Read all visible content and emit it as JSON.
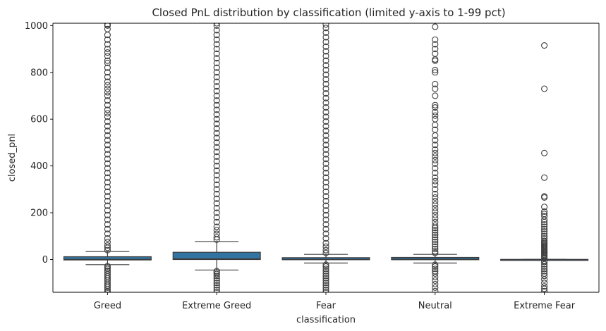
{
  "chart_data": {
    "type": "box",
    "title": "Closed PnL distribution by classification (limited y-axis to 1-99 pct)",
    "xlabel": "classification",
    "ylabel": "closed_pnl",
    "ylim": [
      -140,
      1010
    ],
    "yticks": [
      0,
      200,
      400,
      600,
      800,
      1000
    ],
    "grid": false,
    "colors": {
      "box": "#3274a1",
      "edge": "#3d3d3d",
      "outlier": "#3d3d3d"
    },
    "categories": [
      "Greed",
      "Extreme Greed",
      "Fear",
      "Neutral",
      "Extreme Fear"
    ],
    "boxes": [
      {
        "name": "Greed",
        "whisker_low": -22,
        "q1": -2,
        "median": 1,
        "q3": 12,
        "whisker_high": 34,
        "outliers": [
          -140,
          -135,
          -128,
          -120,
          -112,
          -104,
          -96,
          -88,
          -80,
          -72,
          -64,
          -56,
          -48,
          -40,
          -34,
          -28,
          40,
          50,
          60,
          75,
          90,
          110,
          130,
          150,
          170,
          190,
          210,
          230,
          250,
          270,
          290,
          310,
          330,
          350,
          370,
          390,
          410,
          430,
          450,
          470,
          490,
          510,
          530,
          550,
          570,
          590,
          610,
          625,
          640,
          660,
          680,
          700,
          715,
          730,
          745,
          760,
          780,
          800,
          820,
          840,
          850,
          870,
          885,
          900,
          920,
          940,
          960,
          985,
          1000,
          1005
        ]
      },
      {
        "name": "Extreme Greed",
        "whisker_low": -45,
        "q1": 0,
        "median": 3,
        "q3": 31,
        "whisker_high": 77,
        "outliers": [
          -140,
          -130,
          -120,
          -110,
          -100,
          -90,
          -80,
          -70,
          -62,
          -55,
          -50,
          85,
          95,
          110,
          125,
          140,
          160,
          180,
          200,
          220,
          240,
          260,
          280,
          300,
          320,
          340,
          360,
          380,
          400,
          420,
          440,
          460,
          480,
          500,
          520,
          540,
          560,
          580,
          600,
          620,
          640,
          660,
          680,
          700,
          720,
          740,
          760,
          780,
          800,
          820,
          840,
          860,
          880,
          900,
          920,
          940,
          960,
          980,
          1000,
          1010
        ]
      },
      {
        "name": "Fear",
        "whisker_low": -15,
        "q1": -1,
        "median": 1,
        "q3": 8,
        "whisker_high": 22,
        "outliers": [
          -140,
          -130,
          -120,
          -110,
          -100,
          -90,
          -80,
          -70,
          -60,
          -50,
          -40,
          -30,
          -22,
          28,
          40,
          55,
          70,
          90,
          110,
          130,
          150,
          170,
          190,
          210,
          230,
          250,
          270,
          290,
          310,
          330,
          350,
          370,
          390,
          410,
          430,
          450,
          470,
          490,
          510,
          530,
          550,
          570,
          590,
          610,
          630,
          650,
          670,
          690,
          710,
          730,
          750,
          770,
          790,
          810,
          830,
          850,
          870,
          890,
          910,
          930,
          950,
          970,
          990,
          1005
        ]
      },
      {
        "name": "Neutral",
        "whisker_low": -15,
        "q1": -1,
        "median": 2,
        "q3": 9,
        "whisker_high": 22,
        "outliers": [
          -135,
          -120,
          -105,
          -90,
          -75,
          -60,
          -50,
          -40,
          -30,
          -22,
          28,
          35,
          45,
          55,
          65,
          75,
          85,
          95,
          105,
          115,
          125,
          135,
          145,
          160,
          175,
          190,
          205,
          220,
          235,
          250,
          265,
          280,
          300,
          320,
          335,
          350,
          370,
          390,
          410,
          425,
          440,
          455,
          470,
          490,
          510,
          530,
          555,
          575,
          600,
          615,
          630,
          650,
          660,
          700,
          730,
          750,
          800,
          810,
          850,
          855,
          880,
          900,
          920,
          940,
          995
        ]
      },
      {
        "name": "Extreme Fear",
        "whisker_low": -1,
        "q1": -0.5,
        "median": 0,
        "q3": 0.5,
        "whisker_high": 1,
        "outliers": [
          -135,
          -125,
          -115,
          -100,
          -85,
          -70,
          -60,
          -50,
          -40,
          -30,
          -20,
          -10,
          -5,
          5,
          10,
          15,
          20,
          25,
          30,
          35,
          40,
          45,
          50,
          55,
          60,
          65,
          70,
          75,
          80,
          90,
          100,
          110,
          120,
          130,
          140,
          150,
          160,
          170,
          185,
          195,
          205,
          225,
          265,
          270,
          350,
          455,
          730,
          915
        ]
      }
    ]
  }
}
